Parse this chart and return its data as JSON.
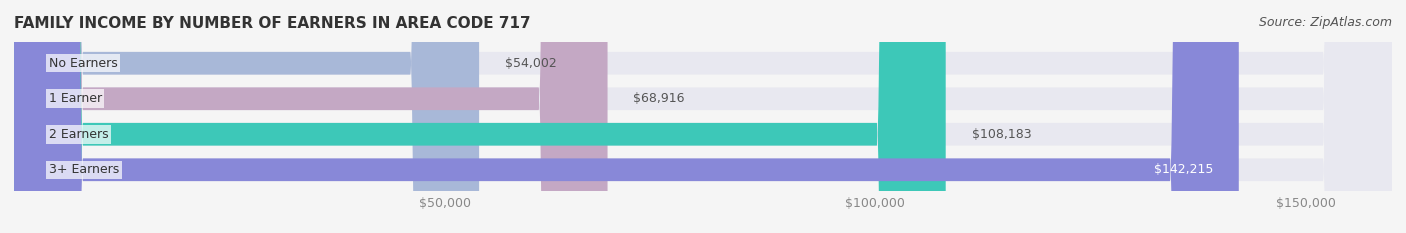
{
  "title": "FAMILY INCOME BY NUMBER OF EARNERS IN AREA CODE 717",
  "source": "Source: ZipAtlas.com",
  "categories": [
    "No Earners",
    "1 Earner",
    "2 Earners",
    "3+ Earners"
  ],
  "values": [
    54002,
    68916,
    108183,
    142215
  ],
  "value_labels": [
    "$54,002",
    "$68,916",
    "$108,183",
    "$142,215"
  ],
  "bar_colors": [
    "#a8b8d8",
    "#c4a8c4",
    "#3dc8b8",
    "#8888d8"
  ],
  "bar_bg_color": "#e8e8f0",
  "xlim": [
    0,
    160000
  ],
  "xticks": [
    50000,
    100000,
    150000
  ],
  "xtick_labels": [
    "$50,000",
    "$100,000",
    "$150,000"
  ],
  "title_fontsize": 11,
  "source_fontsize": 9,
  "label_fontsize": 9,
  "tick_fontsize": 9,
  "background_color": "#f5f5f5",
  "bar_height": 0.62,
  "title_color": "#333333",
  "source_color": "#555555",
  "value_color_light": "#ffffff",
  "value_color_dark": "#555555",
  "value_threshold": 130000
}
